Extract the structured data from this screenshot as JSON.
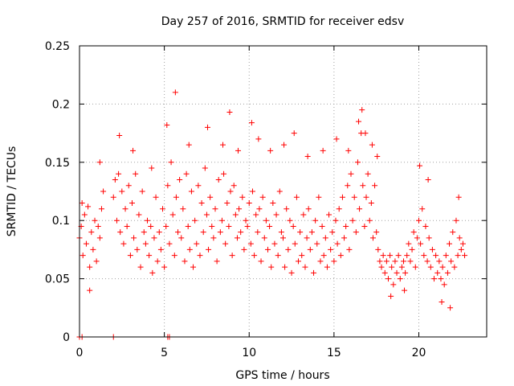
{
  "chart_data": {
    "type": "scatter",
    "title": "Day 257 of 2016, SRMTID for receiver edsv",
    "xlabel": "GPS time / hours",
    "ylabel": "SRMTID / TECUs",
    "xlim": [
      0,
      24
    ],
    "ylim": [
      0,
      0.25
    ],
    "x_ticks": [
      0,
      5,
      10,
      15,
      20
    ],
    "x_tick_labels": [
      "0",
      "5",
      "10",
      "15",
      "20"
    ],
    "y_ticks": [
      0,
      0.05,
      0.1,
      0.15,
      0.2,
      0.25
    ],
    "y_tick_labels": [
      "0",
      "0.05",
      "0.1",
      "0.15",
      "0.2",
      "0.25"
    ],
    "grid": true,
    "marker": "+",
    "colors": {
      "series": "#ff0000",
      "grid": "#a0a0a0"
    },
    "series": [
      {
        "name": "SRMTID",
        "x": [
          0.0,
          0.1,
          0.2,
          0.3,
          0.4,
          0.5,
          0.6,
          0.7,
          0.8,
          0.9,
          1.0,
          1.1,
          1.2,
          1.3,
          1.4,
          2.0,
          2.1,
          2.2,
          2.3,
          2.4,
          2.5,
          2.6,
          2.7,
          2.8,
          2.9,
          3.0,
          3.1,
          3.2,
          3.3,
          3.4,
          3.5,
          3.6,
          3.7,
          3.8,
          3.9,
          4.0,
          4.1,
          4.2,
          4.3,
          4.4,
          4.5,
          4.6,
          4.7,
          4.8,
          4.9,
          5.0,
          5.1,
          5.2,
          5.3,
          5.4,
          5.5,
          5.6,
          5.7,
          5.8,
          5.9,
          6.0,
          6.1,
          6.2,
          6.3,
          6.4,
          6.5,
          6.6,
          6.7,
          6.8,
          6.9,
          7.0,
          7.1,
          7.2,
          7.3,
          7.4,
          7.5,
          7.6,
          7.7,
          7.8,
          7.9,
          8.0,
          8.1,
          8.2,
          8.3,
          8.4,
          8.5,
          8.6,
          8.7,
          8.8,
          8.9,
          9.0,
          9.1,
          9.2,
          9.3,
          9.4,
          9.5,
          9.6,
          9.7,
          9.8,
          9.9,
          10.0,
          10.1,
          10.2,
          10.3,
          10.4,
          10.5,
          10.6,
          10.7,
          10.8,
          10.9,
          11.0,
          11.1,
          11.2,
          11.3,
          11.4,
          11.5,
          11.6,
          11.7,
          11.8,
          11.9,
          12.0,
          12.1,
          12.2,
          12.3,
          12.4,
          12.5,
          12.6,
          12.7,
          12.8,
          12.9,
          13.0,
          13.1,
          13.2,
          13.3,
          13.4,
          13.5,
          13.6,
          13.7,
          13.8,
          13.9,
          14.0,
          14.1,
          14.2,
          14.3,
          14.4,
          14.5,
          14.6,
          14.7,
          14.8,
          14.9,
          15.0,
          15.1,
          15.2,
          15.3,
          15.4,
          15.5,
          15.6,
          15.7,
          15.8,
          15.9,
          16.0,
          16.1,
          16.2,
          16.3,
          16.4,
          16.5,
          16.6,
          16.7,
          16.8,
          16.9,
          17.0,
          17.1,
          17.2,
          17.3,
          17.4,
          17.5,
          17.6,
          17.7,
          17.8,
          17.9,
          18.0,
          18.1,
          18.2,
          18.3,
          18.4,
          18.5,
          18.6,
          18.7,
          18.8,
          18.9,
          19.0,
          19.1,
          19.2,
          19.3,
          19.4,
          19.5,
          19.6,
          19.7,
          19.8,
          19.9,
          20.0,
          20.1,
          20.2,
          20.3,
          20.4,
          20.5,
          20.6,
          20.7,
          20.8,
          20.9,
          21.0,
          21.1,
          21.2,
          21.3,
          21.4,
          21.5,
          21.6,
          21.7,
          21.8,
          21.9,
          22.0,
          22.1,
          22.2,
          22.3,
          22.4,
          22.5,
          22.6,
          22.7,
          0.15,
          0.6,
          1.2,
          2.35,
          3.15,
          4.25,
          5.15,
          5.65,
          6.45,
          7.55,
          8.45,
          8.85,
          9.35,
          10.15,
          10.55,
          11.25,
          12.05,
          12.65,
          13.45,
          14.35,
          15.15,
          15.85,
          16.45,
          16.65,
          16.85,
          17.25,
          17.55,
          18.35,
          19.15,
          20.05,
          20.55,
          21.35,
          21.85,
          22.35,
          0.0,
          0.15,
          2.0,
          5.2,
          5.3
        ],
        "y": [
          0.085,
          0.095,
          0.07,
          0.105,
          0.08,
          0.112,
          0.06,
          0.09,
          0.075,
          0.1,
          0.065,
          0.095,
          0.085,
          0.11,
          0.125,
          0.12,
          0.135,
          0.1,
          0.14,
          0.09,
          0.125,
          0.08,
          0.11,
          0.095,
          0.13,
          0.07,
          0.115,
          0.085,
          0.14,
          0.075,
          0.105,
          0.06,
          0.125,
          0.09,
          0.08,
          0.1,
          0.07,
          0.095,
          0.055,
          0.085,
          0.12,
          0.065,
          0.09,
          0.075,
          0.11,
          0.06,
          0.095,
          0.13,
          0.08,
          0.15,
          0.105,
          0.07,
          0.12,
          0.09,
          0.135,
          0.085,
          0.11,
          0.065,
          0.14,
          0.095,
          0.075,
          0.125,
          0.06,
          0.1,
          0.08,
          0.13,
          0.07,
          0.115,
          0.09,
          0.145,
          0.105,
          0.075,
          0.12,
          0.095,
          0.085,
          0.11,
          0.065,
          0.135,
          0.09,
          0.1,
          0.14,
          0.08,
          0.115,
          0.095,
          0.125,
          0.07,
          0.13,
          0.105,
          0.085,
          0.11,
          0.09,
          0.12,
          0.075,
          0.1,
          0.095,
          0.115,
          0.08,
          0.125,
          0.07,
          0.105,
          0.09,
          0.11,
          0.065,
          0.12,
          0.085,
          0.1,
          0.075,
          0.095,
          0.06,
          0.115,
          0.08,
          0.105,
          0.07,
          0.125,
          0.09,
          0.085,
          0.06,
          0.11,
          0.075,
          0.1,
          0.055,
          0.095,
          0.08,
          0.12,
          0.065,
          0.09,
          0.07,
          0.105,
          0.06,
          0.085,
          0.11,
          0.075,
          0.09,
          0.055,
          0.1,
          0.08,
          0.12,
          0.065,
          0.095,
          0.07,
          0.085,
          0.06,
          0.105,
          0.075,
          0.09,
          0.065,
          0.1,
          0.08,
          0.11,
          0.07,
          0.12,
          0.085,
          0.095,
          0.13,
          0.075,
          0.14,
          0.1,
          0.12,
          0.09,
          0.15,
          0.11,
          0.175,
          0.13,
          0.095,
          0.12,
          0.14,
          0.1,
          0.115,
          0.085,
          0.13,
          0.09,
          0.075,
          0.065,
          0.06,
          0.07,
          0.055,
          0.065,
          0.05,
          0.07,
          0.06,
          0.045,
          0.065,
          0.055,
          0.07,
          0.05,
          0.06,
          0.065,
          0.055,
          0.07,
          0.08,
          0.065,
          0.075,
          0.09,
          0.06,
          0.085,
          0.1,
          0.08,
          0.11,
          0.07,
          0.095,
          0.065,
          0.085,
          0.06,
          0.075,
          0.05,
          0.07,
          0.055,
          0.065,
          0.05,
          0.06,
          0.045,
          0.07,
          0.055,
          0.08,
          0.065,
          0.09,
          0.06,
          0.1,
          0.07,
          0.085,
          0.075,
          0.08,
          0.07,
          0.115,
          0.04,
          0.15,
          0.173,
          0.16,
          0.145,
          0.182,
          0.21,
          0.165,
          0.18,
          0.165,
          0.193,
          0.16,
          0.184,
          0.17,
          0.16,
          0.165,
          0.175,
          0.155,
          0.16,
          0.17,
          0.16,
          0.185,
          0.195,
          0.175,
          0.165,
          0.155,
          0.035,
          0.04,
          0.147,
          0.135,
          0.03,
          0.025,
          0.12,
          0.0,
          0.0,
          0.0,
          0.0,
          0.0
        ]
      }
    ]
  }
}
